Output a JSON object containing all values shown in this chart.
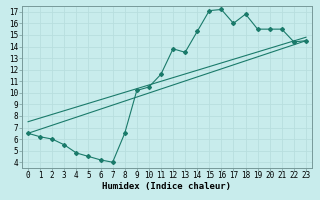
{
  "title": "",
  "xlabel": "Humidex (Indice chaleur)",
  "bg_color": "#c8ecec",
  "grid_color": "#b8dede",
  "line_color": "#1a7a6a",
  "xlim": [
    -0.5,
    23.5
  ],
  "ylim": [
    3.5,
    17.5
  ],
  "xticks": [
    0,
    1,
    2,
    3,
    4,
    5,
    6,
    7,
    8,
    9,
    10,
    11,
    12,
    13,
    14,
    15,
    16,
    17,
    18,
    19,
    20,
    21,
    22,
    23
  ],
  "yticks": [
    4,
    5,
    6,
    7,
    8,
    9,
    10,
    11,
    12,
    13,
    14,
    15,
    16,
    17
  ],
  "line1_x": [
    0,
    1,
    2,
    3,
    4,
    5,
    6,
    7,
    8,
    9,
    10,
    11,
    12,
    13,
    14,
    15,
    16,
    17,
    18,
    19,
    20,
    21,
    22,
    23
  ],
  "line1_y": [
    6.5,
    6.2,
    6.0,
    5.5,
    4.8,
    4.5,
    4.2,
    4.0,
    6.5,
    10.2,
    10.5,
    11.6,
    13.8,
    13.5,
    15.3,
    17.1,
    17.2,
    16.0,
    16.8,
    15.5,
    15.5,
    15.5,
    14.4,
    14.5
  ],
  "line2_x": [
    0,
    23
  ],
  "line2_y": [
    6.5,
    14.5
  ],
  "line3_x": [
    0,
    23
  ],
  "line3_y": [
    7.5,
    14.8
  ],
  "tick_fontsize": 5.5,
  "xlabel_fontsize": 6.5
}
